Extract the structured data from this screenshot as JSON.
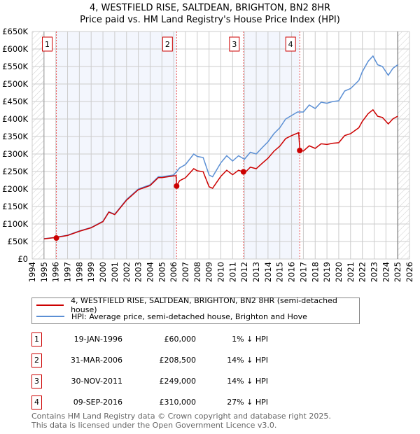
{
  "header": {
    "title": "4, WESTFIELD RISE, SALTDEAN, BRIGHTON, BN2 8HR",
    "subtitle": "Price paid vs. HM Land Registry's House Price Index (HPI)"
  },
  "chart_data": {
    "type": "line",
    "title": "4, WESTFIELD RISE, SALTDEAN, BRIGHTON, BN2 8HR",
    "subtitle": "Price paid vs. HM Land Registry's House Price Index (HPI)",
    "xlim": [
      1994,
      2026
    ],
    "ylim": [
      0,
      650000
    ],
    "x_ticks": [
      "1994",
      "1995",
      "1996",
      "1997",
      "1998",
      "1999",
      "2000",
      "2001",
      "2002",
      "2003",
      "2004",
      "2005",
      "2006",
      "2007",
      "2008",
      "2009",
      "2010",
      "2011",
      "2012",
      "2013",
      "2014",
      "2015",
      "2016",
      "2017",
      "2018",
      "2019",
      "2020",
      "2021",
      "2022",
      "2023",
      "2024",
      "2025",
      "2026"
    ],
    "y_ticks": [
      "£0",
      "£50K",
      "£100K",
      "£150K",
      "£200K",
      "£250K",
      "£300K",
      "£350K",
      "£400K",
      "£450K",
      "£500K",
      "£550K",
      "£600K",
      "£650K"
    ],
    "grid": true,
    "data_range": [
      1995,
      2025
    ],
    "series": [
      {
        "name": "4, WESTFIELD RISE, SALTDEAN, BRIGHTON, BN2 8HR (semi-detached house)",
        "color": "#cc0000",
        "x": [
          1995,
          1996,
          1997,
          1998,
          1999,
          2000,
          2000.5,
          2001,
          2002,
          2003,
          2004,
          2004.7,
          2005,
          2006,
          2006.2,
          2006.25,
          2006.5,
          2007,
          2007.7,
          2008,
          2008.5,
          2009,
          2009.3,
          2010,
          2010.5,
          2011,
          2011.5,
          2011.9,
          2012,
          2012.5,
          2013,
          2013.5,
          2014,
          2014.5,
          2015,
          2015.5,
          2016,
          2016.6,
          2016.7,
          2017,
          2017.5,
          2018,
          2018.5,
          2019,
          2019.5,
          2020,
          2020.5,
          2021,
          2021.7,
          2022,
          2022.5,
          2022.9,
          2023.3,
          2023.7,
          2024.2,
          2024.6,
          2025
        ],
        "y": [
          57400,
          61400,
          67300,
          79200,
          89100,
          106900,
          133700,
          126700,
          168300,
          198000,
          209900,
          232700,
          232700,
          237600,
          238000,
          208500,
          223600,
          232200,
          258000,
          252000,
          249400,
          206400,
          202100,
          236500,
          253700,
          240800,
          253700,
          249000,
          245100,
          262300,
          258000,
          273500,
          288100,
          307900,
          322500,
          344000,
          352600,
          361000,
          310000,
          308700,
          323400,
          316000,
          329300,
          327100,
          330800,
          332200,
          352800,
          358000,
          374900,
          393200,
          415300,
          426300,
          407900,
          404300,
          385900,
          400600,
          408000
        ]
      },
      {
        "name": "HPI: Average price, semi-detached house, Brighton and Hove",
        "color": "#5b8fd4",
        "x": [
          1995,
          1996,
          1997,
          1998,
          1999,
          2000,
          2000.5,
          2001,
          2002,
          2003,
          2004,
          2004.7,
          2005,
          2006,
          2006.5,
          2007,
          2007.7,
          2008,
          2008.5,
          2009,
          2009.3,
          2010,
          2010.5,
          2011,
          2011.5,
          2012,
          2012.5,
          2013,
          2013.5,
          2014,
          2014.5,
          2015,
          2015.5,
          2016,
          2016.5,
          2017,
          2017.5,
          2018,
          2018.5,
          2019,
          2019.5,
          2020,
          2020.5,
          2021,
          2021.7,
          2022,
          2022.5,
          2022.9,
          2023.3,
          2023.7,
          2024.2,
          2024.6,
          2025
        ],
        "y": [
          58000,
          62000,
          68000,
          80000,
          90000,
          108000,
          135000,
          128000,
          170000,
          200000,
          212000,
          235000,
          235000,
          240000,
          260000,
          270000,
          300000,
          293000,
          290000,
          240000,
          235000,
          275000,
          295000,
          280000,
          295000,
          285000,
          305000,
          300000,
          318000,
          335000,
          358000,
          375000,
          400000,
          410000,
          420000,
          420000,
          440000,
          430000,
          448000,
          445000,
          450000,
          452000,
          480000,
          487000,
          510000,
          535000,
          565000,
          580000,
          555000,
          550000,
          525000,
          545000,
          555000
        ]
      }
    ],
    "sales": [
      {
        "label": "1",
        "x": 1996.05,
        "y": 60000,
        "date": "19-JAN-1996",
        "price": "£60,000",
        "hpi": "1% ↓ HPI"
      },
      {
        "label": "2",
        "x": 2006.25,
        "y": 208500,
        "date": "31-MAR-2006",
        "price": "£208,500",
        "hpi": "14% ↓ HPI"
      },
      {
        "label": "3",
        "x": 2011.92,
        "y": 249000,
        "date": "30-NOV-2011",
        "price": "£249,000",
        "hpi": "14% ↓ HPI"
      },
      {
        "label": "4",
        "x": 2016.69,
        "y": 310000,
        "date": "09-SEP-2016",
        "price": "£310,000",
        "hpi": "27% ↓ HPI"
      }
    ],
    "legend_position": "below"
  },
  "legend": {
    "price_label": "4, WESTFIELD RISE, SALTDEAN, BRIGHTON, BN2 8HR (semi-detached house)",
    "hpi_label": "HPI: Average price, semi-detached house, Brighton and Hove"
  },
  "footer": {
    "line1": "Contains HM Land Registry data © Crown copyright and database right 2025.",
    "line2": "This data is licensed under the Open Government Licence v3.0."
  }
}
